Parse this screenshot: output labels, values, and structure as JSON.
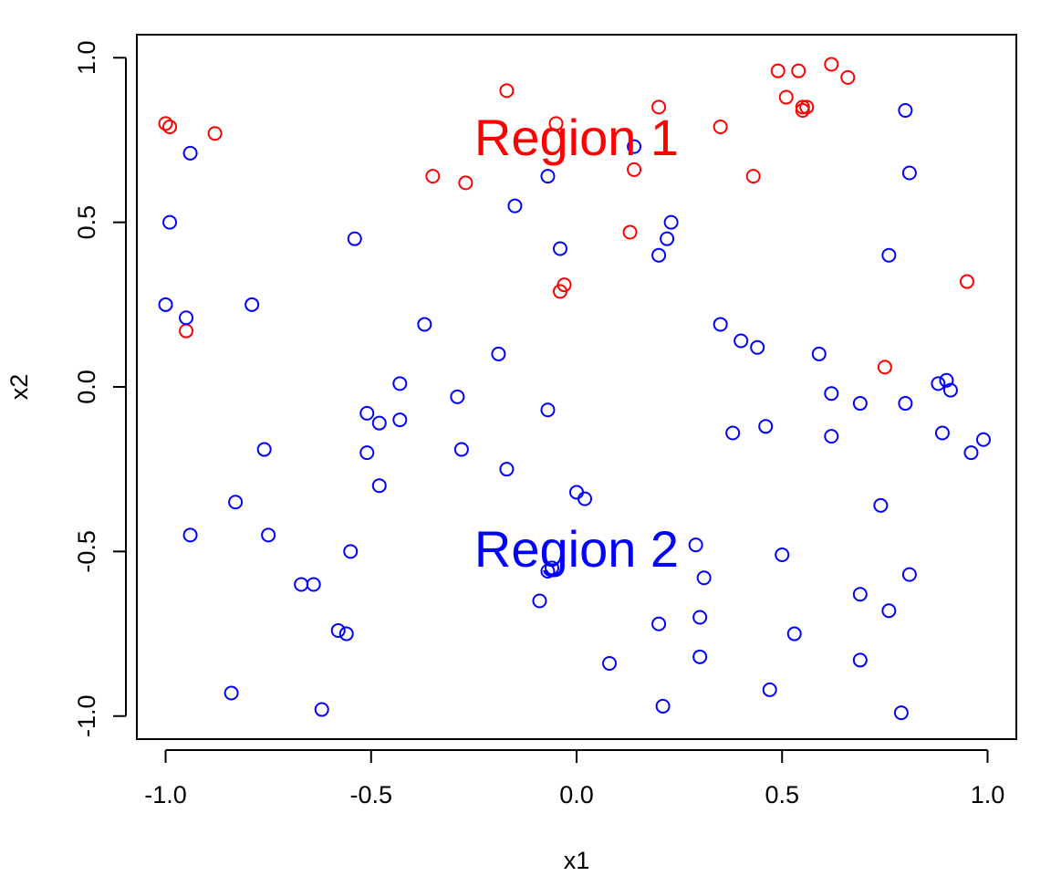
{
  "chart_data": {
    "type": "scatter",
    "title": "",
    "xlabel": "x1",
    "ylabel": "x2",
    "xlim": [
      -1.07,
      1.07
    ],
    "ylim": [
      -1.07,
      1.07
    ],
    "xticks": [
      -1.0,
      -0.5,
      0.0,
      0.5,
      1.0
    ],
    "xtick_labels": [
      "-1.0",
      "-0.5",
      "0.0",
      "0.5",
      "1.0"
    ],
    "yticks": [
      -1.0,
      -0.5,
      0.0,
      0.5,
      1.0
    ],
    "ytick_labels": [
      "-1.0",
      "-0.5",
      "0.0",
      "0.5",
      "1.0"
    ],
    "grid": false,
    "marker": "open-circle",
    "annotations": [
      {
        "text": "Region 1",
        "x": 0.0,
        "y": 0.76,
        "color": "#ff0000"
      },
      {
        "text": "Region 2",
        "x": 0.0,
        "y": -0.49,
        "color": "#0000ff"
      }
    ],
    "series": [
      {
        "color": "#ff0000",
        "points": [
          [
            -1.0,
            0.8
          ],
          [
            -0.99,
            0.79
          ],
          [
            -0.88,
            0.77
          ],
          [
            -0.95,
            0.17
          ],
          [
            -0.35,
            0.64
          ],
          [
            -0.27,
            0.62
          ],
          [
            -0.17,
            0.9
          ],
          [
            -0.05,
            0.8
          ],
          [
            0.13,
            0.47
          ],
          [
            0.14,
            0.66
          ],
          [
            0.2,
            0.85
          ],
          [
            -0.04,
            0.29
          ],
          [
            -0.03,
            0.31
          ],
          [
            0.35,
            0.79
          ],
          [
            0.43,
            0.64
          ],
          [
            0.49,
            0.96
          ],
          [
            0.51,
            0.88
          ],
          [
            0.54,
            0.96
          ],
          [
            0.55,
            0.84
          ],
          [
            0.55,
            0.85
          ],
          [
            0.56,
            0.85
          ],
          [
            0.62,
            0.98
          ],
          [
            0.66,
            0.94
          ],
          [
            0.75,
            0.06
          ],
          [
            0.95,
            0.32
          ]
        ]
      },
      {
        "color": "#0000ff",
        "points": [
          [
            -0.94,
            0.71
          ],
          [
            -0.99,
            0.5
          ],
          [
            -1.0,
            0.25
          ],
          [
            -0.95,
            0.21
          ],
          [
            -0.79,
            0.25
          ],
          [
            -0.54,
            0.45
          ],
          [
            -0.15,
            0.55
          ],
          [
            -0.07,
            0.64
          ],
          [
            -0.04,
            0.42
          ],
          [
            0.14,
            0.73
          ],
          [
            0.22,
            0.45
          ],
          [
            0.23,
            0.5
          ],
          [
            0.2,
            0.4
          ],
          [
            0.8,
            0.84
          ],
          [
            0.81,
            0.65
          ],
          [
            0.76,
            0.4
          ],
          [
            -0.37,
            0.19
          ],
          [
            -0.19,
            0.1
          ],
          [
            0.35,
            0.19
          ],
          [
            0.4,
            0.14
          ],
          [
            0.44,
            0.12
          ],
          [
            0.59,
            0.1
          ],
          [
            -0.43,
            0.01
          ],
          [
            -0.29,
            -0.03
          ],
          [
            -0.51,
            -0.08
          ],
          [
            -0.48,
            -0.11
          ],
          [
            -0.43,
            -0.1
          ],
          [
            -0.07,
            -0.07
          ],
          [
            0.62,
            -0.02
          ],
          [
            0.69,
            -0.05
          ],
          [
            0.8,
            -0.05
          ],
          [
            0.88,
            0.01
          ],
          [
            0.9,
            0.02
          ],
          [
            0.91,
            -0.01
          ],
          [
            -0.76,
            -0.19
          ],
          [
            -0.51,
            -0.2
          ],
          [
            -0.28,
            -0.19
          ],
          [
            -0.17,
            -0.25
          ],
          [
            -0.48,
            -0.3
          ],
          [
            0.0,
            -0.32
          ],
          [
            0.02,
            -0.34
          ],
          [
            0.38,
            -0.14
          ],
          [
            0.46,
            -0.12
          ],
          [
            0.62,
            -0.15
          ],
          [
            0.89,
            -0.14
          ],
          [
            0.96,
            -0.2
          ],
          [
            0.99,
            -0.16
          ],
          [
            -0.83,
            -0.35
          ],
          [
            -0.94,
            -0.45
          ],
          [
            -0.75,
            -0.45
          ],
          [
            -0.55,
            -0.5
          ],
          [
            -0.67,
            -0.6
          ],
          [
            -0.64,
            -0.6
          ],
          [
            -0.07,
            -0.56
          ],
          [
            -0.06,
            -0.55
          ],
          [
            -0.09,
            -0.65
          ],
          [
            0.29,
            -0.48
          ],
          [
            0.31,
            -0.58
          ],
          [
            0.5,
            -0.51
          ],
          [
            0.74,
            -0.36
          ],
          [
            0.81,
            -0.57
          ],
          [
            0.69,
            -0.63
          ],
          [
            0.76,
            -0.68
          ],
          [
            -0.58,
            -0.74
          ],
          [
            -0.56,
            -0.75
          ],
          [
            0.2,
            -0.72
          ],
          [
            0.3,
            -0.7
          ],
          [
            0.53,
            -0.75
          ],
          [
            -0.84,
            -0.93
          ],
          [
            -0.62,
            -0.98
          ],
          [
            0.08,
            -0.84
          ],
          [
            0.21,
            -0.97
          ],
          [
            0.3,
            -0.82
          ],
          [
            0.47,
            -0.92
          ],
          [
            0.69,
            -0.83
          ],
          [
            0.79,
            -0.99
          ]
        ]
      }
    ]
  }
}
